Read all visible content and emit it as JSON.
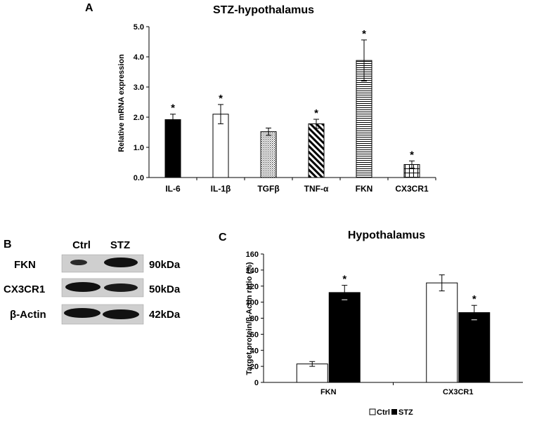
{
  "panel_a": {
    "letter": "A"
  },
  "panel_b": {
    "letter": "B",
    "lanes": [
      "Ctrl",
      "STZ"
    ],
    "rows": [
      {
        "protein": "FKN",
        "size": "90kDa"
      },
      {
        "protein": "CX3CR1",
        "size": "50kDa"
      },
      {
        "protein": "β-Actin",
        "size": "42kDa"
      }
    ]
  },
  "panel_c": {
    "letter": "C"
  },
  "chart_data": [
    {
      "type": "bar",
      "title": "STZ-hypothalamus",
      "ylabel": "Relative mRNA expression",
      "xlabel": "",
      "ylim": [
        0,
        5
      ],
      "yticks": [
        "0.0",
        "1.0",
        "2.0",
        "3.0",
        "4.0",
        "5.0"
      ],
      "categories": [
        "IL-6",
        "IL-1β",
        "TGFβ",
        "TNF-α",
        "FKN",
        "CX3CR1"
      ],
      "values": [
        1.92,
        2.1,
        1.52,
        1.78,
        3.88,
        0.43
      ],
      "errors": [
        0.18,
        0.32,
        0.12,
        0.15,
        0.68,
        0.12
      ],
      "significance": [
        "*",
        "*",
        "",
        "*",
        "*",
        "*"
      ],
      "fills": [
        "solid-black",
        "white",
        "dotted",
        "diagonal-hatch",
        "horizontal-lines",
        "grid"
      ]
    },
    {
      "type": "bar",
      "title": "Hypothalamus",
      "ylabel": "Target protein/β-Actin ratio (%)",
      "xlabel": "",
      "ylim": [
        0,
        160
      ],
      "yticks": [
        "0",
        "20",
        "40",
        "60",
        "80",
        "100",
        "120",
        "140",
        "160"
      ],
      "categories": [
        "FKN",
        "CX3CR1"
      ],
      "series": [
        {
          "name": "Ctrl",
          "values": [
            23,
            124
          ],
          "errors": [
            3,
            10
          ],
          "significance": [
            "",
            ""
          ],
          "color": "#ffffff"
        },
        {
          "name": "STZ",
          "values": [
            112,
            87
          ],
          "errors": [
            9,
            9
          ],
          "significance": [
            "*",
            "*"
          ],
          "color": "#000000"
        }
      ],
      "legend": "bottom"
    }
  ]
}
